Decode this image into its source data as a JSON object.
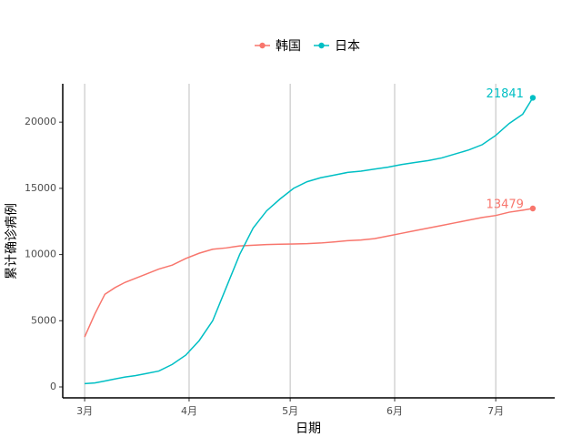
{
  "chart_data": {
    "type": "line",
    "x_label": "日期",
    "y_label": "累计确诊病例",
    "x": [
      0,
      3,
      6,
      9,
      12,
      15,
      18,
      22,
      26,
      30,
      34,
      38,
      42,
      46,
      50,
      54,
      58,
      62,
      66,
      70,
      74,
      78,
      82,
      86,
      90,
      94,
      98,
      102,
      106,
      110,
      114,
      118,
      122,
      126,
      130,
      133
    ],
    "series": [
      {
        "name": "韩国",
        "color": "#F8766D",
        "values": [
          3780,
          5500,
          7000,
          7500,
          7900,
          8200,
          8500,
          8900,
          9200,
          9700,
          10100,
          10400,
          10500,
          10650,
          10700,
          10750,
          10780,
          10800,
          10820,
          10870,
          10950,
          11050,
          11100,
          11200,
          11400,
          11600,
          11800,
          12000,
          12200,
          12400,
          12600,
          12800,
          12950,
          13200,
          13350,
          13479
        ]
      },
      {
        "name": "日本",
        "color": "#00BFC4",
        "values": [
          250,
          300,
          450,
          600,
          750,
          850,
          1000,
          1200,
          1700,
          2400,
          3500,
          5000,
          7500,
          10000,
          12000,
          13300,
          14200,
          15000,
          15500,
          15800,
          16000,
          16200,
          16300,
          16450,
          16600,
          16800,
          16950,
          17100,
          17300,
          17600,
          17900,
          18300,
          19000,
          19900,
          20600,
          21841
        ]
      }
    ],
    "xlim": [
      -6.5,
      139.5
    ],
    "xticks": [
      {
        "value": 0,
        "label": "3月"
      },
      {
        "value": 31,
        "label": "4月"
      },
      {
        "value": 61,
        "label": "5月"
      },
      {
        "value": 92,
        "label": "6月"
      },
      {
        "value": 122,
        "label": "7月"
      }
    ],
    "ylim": [
      -825,
      22900
    ],
    "yticks": [
      0,
      5000,
      10000,
      15000,
      20000
    ],
    "grid": "x",
    "legend": "top"
  }
}
